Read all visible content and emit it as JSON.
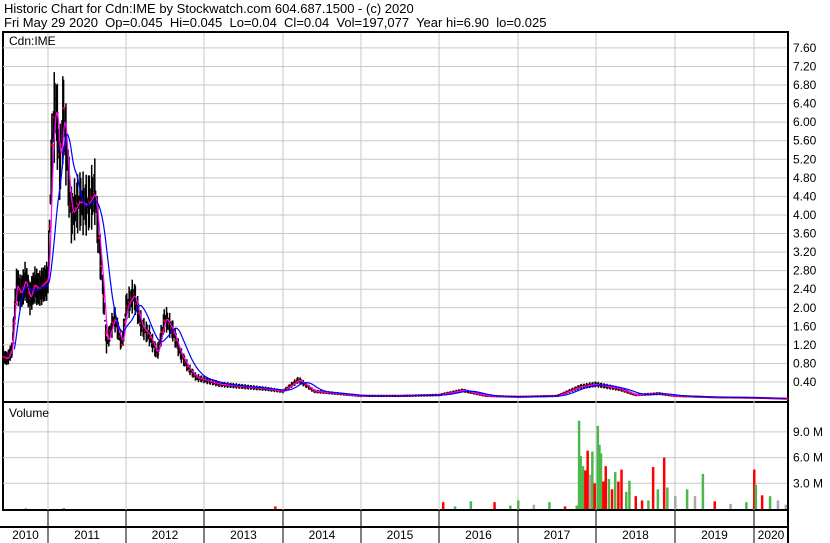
{
  "header": {
    "line1": "Historic Chart for Cdn:IME by Stockwatch.com 604.687.1500 - (c) 2020",
    "line2": "Fri May 29 2020  Op=0.045  Hi=0.045  Lo=0.04  Cl=0.04  Vol=197,077  Year hi=6.90  lo=0.025"
  },
  "chart_data": [
    {
      "type": "line",
      "title": "Cdn:IME",
      "xlim": [
        2010,
        2020.45
      ],
      "ylim": [
        0,
        7.9
      ],
      "grid": true,
      "y_ticks": [
        "0.40",
        "0.80",
        "1.20",
        "1.60",
        "2.00",
        "2.40",
        "2.80",
        "3.20",
        "3.60",
        "4.00",
        "4.40",
        "4.80",
        "5.20",
        "5.60",
        "6.00",
        "6.40",
        "6.80",
        "7.20",
        "7.60"
      ],
      "x_ticks": [
        "2010",
        "2011",
        "2012",
        "2013",
        "2014",
        "2015",
        "2016",
        "2017",
        "2018",
        "2019",
        "2020"
      ],
      "colors": {
        "price": "#000000",
        "close_marks": "#ff0000",
        "short_ma": "#ff00ff",
        "long_ma": "#0000ff"
      },
      "price": {
        "x": [
          2010.0,
          2010.1,
          2010.2,
          2010.3,
          2010.4,
          2010.5,
          2010.6,
          2010.7,
          2010.8,
          2010.9,
          2011.0,
          2011.05,
          2011.1,
          2011.15,
          2011.2,
          2011.25,
          2011.3,
          2011.4,
          2011.5,
          2011.6,
          2011.7,
          2011.75,
          2011.85,
          2011.95,
          2012.0,
          2012.1,
          2012.2,
          2012.3,
          2012.4,
          2012.5,
          2012.6,
          2012.7,
          2012.8,
          2012.9,
          2013.0,
          2013.2,
          2013.5,
          2013.8,
          2014.0,
          2014.2,
          2014.4,
          2014.7,
          2015.0,
          2015.5,
          2016.0,
          2016.3,
          2016.6,
          2017.0,
          2017.5,
          2017.8,
          2018.0,
          2018.3,
          2018.5,
          2018.8,
          2019.0,
          2019.5,
          2020.0,
          2020.4
        ],
        "y": [
          0.95,
          0.9,
          1.1,
          2.5,
          2.3,
          2.6,
          2.2,
          2.5,
          2.4,
          2.5,
          2.6,
          5.5,
          6.5,
          5.0,
          6.3,
          5.0,
          4.0,
          4.3,
          4.2,
          4.5,
          2.5,
          1.2,
          1.8,
          1.2,
          2.0,
          2.3,
          1.6,
          1.4,
          1.0,
          1.8,
          1.5,
          1.0,
          0.7,
          0.5,
          0.45,
          0.35,
          0.3,
          0.25,
          0.2,
          0.45,
          0.2,
          0.15,
          0.1,
          0.1,
          0.12,
          0.22,
          0.1,
          0.08,
          0.1,
          0.3,
          0.35,
          0.25,
          0.12,
          0.15,
          0.1,
          0.07,
          0.06,
          0.04
        ]
      }
    },
    {
      "type": "bar",
      "title": "Volume",
      "ylim": [
        0,
        11
      ],
      "y_ticks": [
        "3.0 M",
        "6.0 M",
        "9.0 M"
      ],
      "colors": {
        "up": "#4cb84c",
        "down": "#ff0000",
        "flat": "#a8a8a8"
      },
      "bars": [
        [
          2010.5,
          0.05,
          "down"
        ],
        [
          2011.2,
          0.08,
          "down"
        ],
        [
          2013.9,
          0.3,
          "down"
        ],
        [
          2016.05,
          0.8,
          "down"
        ],
        [
          2016.2,
          0.3,
          "up"
        ],
        [
          2016.4,
          0.9,
          "up"
        ],
        [
          2016.7,
          0.8,
          "down"
        ],
        [
          2016.9,
          0.4,
          "up"
        ],
        [
          2017.0,
          1.0,
          "up"
        ],
        [
          2017.2,
          0.5,
          "flat"
        ],
        [
          2017.4,
          0.8,
          "up"
        ],
        [
          2017.6,
          0.3,
          "down"
        ],
        [
          2017.75,
          0.4,
          "up"
        ],
        [
          2017.78,
          10.3,
          "up"
        ],
        [
          2017.8,
          6.2,
          "up"
        ],
        [
          2017.83,
          5.0,
          "up"
        ],
        [
          2017.86,
          4.5,
          "down"
        ],
        [
          2017.89,
          6.8,
          "down"
        ],
        [
          2017.92,
          4.0,
          "flat"
        ],
        [
          2017.95,
          6.7,
          "up"
        ],
        [
          2017.98,
          3.0,
          "down"
        ],
        [
          2018.02,
          9.7,
          "up"
        ],
        [
          2018.04,
          7.5,
          "up"
        ],
        [
          2018.06,
          6.5,
          "up"
        ],
        [
          2018.09,
          3.2,
          "down"
        ],
        [
          2018.12,
          5.0,
          "down"
        ],
        [
          2018.16,
          3.5,
          "up"
        ],
        [
          2018.2,
          2.3,
          "down"
        ],
        [
          2018.24,
          4.3,
          "up"
        ],
        [
          2018.28,
          3.2,
          "down"
        ],
        [
          2018.32,
          4.6,
          "down"
        ],
        [
          2018.38,
          2.0,
          "up"
        ],
        [
          2018.42,
          3.3,
          "up"
        ],
        [
          2018.5,
          1.5,
          "down"
        ],
        [
          2018.58,
          1.0,
          "down"
        ],
        [
          2018.66,
          1.0,
          "up"
        ],
        [
          2018.72,
          4.9,
          "down"
        ],
        [
          2018.78,
          2.3,
          "up"
        ],
        [
          2018.86,
          6.0,
          "down"
        ],
        [
          2018.9,
          2.5,
          "up"
        ],
        [
          2019.0,
          1.5,
          "flat"
        ],
        [
          2019.15,
          2.3,
          "up"
        ],
        [
          2019.25,
          1.5,
          "flat"
        ],
        [
          2019.35,
          4.1,
          "up"
        ],
        [
          2019.5,
          0.9,
          "down"
        ],
        [
          2019.7,
          0.6,
          "flat"
        ],
        [
          2019.9,
          0.8,
          "up"
        ],
        [
          2020.0,
          4.6,
          "down"
        ],
        [
          2020.02,
          2.8,
          "up"
        ],
        [
          2020.1,
          1.6,
          "down"
        ],
        [
          2020.2,
          1.5,
          "up"
        ],
        [
          2020.3,
          1.0,
          "flat"
        ],
        [
          2020.4,
          0.5,
          "flat"
        ]
      ]
    }
  ]
}
